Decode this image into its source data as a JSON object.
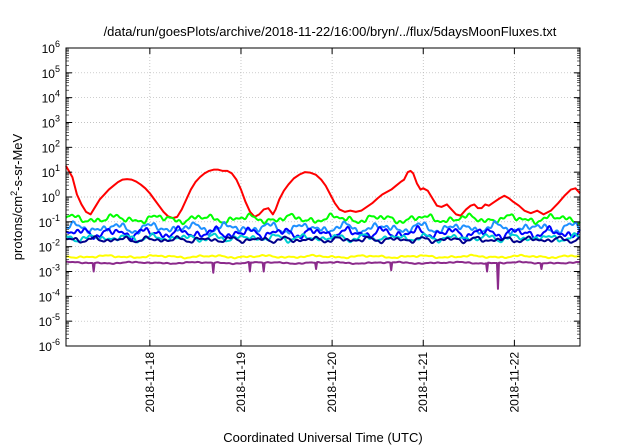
{
  "chart_data": {
    "type": "line",
    "title": "/data/run/goesPlots/archive/2018-11-22/16:00/bryn/../flux/5daysMoonFluxes.txt",
    "xlabel": "Coordinated Universal Time (UTC)",
    "ylabel": "protons/cm²-s-sr-MeV",
    "ylabel_parts": [
      "protons/cm",
      "2",
      "-s-sr-MeV"
    ],
    "y_scale": "log",
    "ylim_exp": [
      -6,
      6
    ],
    "y_ticks": [
      {
        "exp": -6,
        "label": "10",
        "sup": "-6"
      },
      {
        "exp": -5,
        "label": "10",
        "sup": "-5"
      },
      {
        "exp": -4,
        "label": "10",
        "sup": "-4"
      },
      {
        "exp": -3,
        "label": "10",
        "sup": "-3"
      },
      {
        "exp": -2,
        "label": "10",
        "sup": "-2"
      },
      {
        "exp": -1,
        "label": "10",
        "sup": "-1"
      },
      {
        "exp": 0,
        "label": "10",
        "sup": "0"
      },
      {
        "exp": 1,
        "label": "10",
        "sup": "1"
      },
      {
        "exp": 2,
        "label": "10",
        "sup": "2"
      },
      {
        "exp": 3,
        "label": "10",
        "sup": "3"
      },
      {
        "exp": 4,
        "label": "10",
        "sup": "4"
      },
      {
        "exp": 5,
        "label": "10",
        "sup": "5"
      },
      {
        "exp": 6,
        "label": "10",
        "sup": "6"
      }
    ],
    "xlim_days": [
      -0.92,
      4.72
    ],
    "x_ticks": [
      {
        "day": 0,
        "label": "2018-11-18"
      },
      {
        "day": 1,
        "label": "2018-11-19"
      },
      {
        "day": 2,
        "label": "2018-11-20"
      },
      {
        "day": 3,
        "label": "2018-11-21"
      },
      {
        "day": 4,
        "label": "2018-11-22"
      }
    ],
    "grid": true,
    "legend": "none",
    "series": [
      {
        "color": "#ff0000",
        "points": [
          [
            -0.92,
            1.25
          ],
          [
            -0.85,
            0.8
          ],
          [
            -0.8,
            0.1
          ],
          [
            -0.75,
            -0.3
          ],
          [
            -0.7,
            -0.6
          ],
          [
            -0.65,
            -0.7
          ],
          [
            -0.6,
            -0.4
          ],
          [
            -0.55,
            -0.1
          ],
          [
            -0.5,
            0.1
          ],
          [
            -0.45,
            0.3
          ],
          [
            -0.4,
            0.45
          ],
          [
            -0.35,
            0.6
          ],
          [
            -0.3,
            0.7
          ],
          [
            -0.25,
            0.72
          ],
          [
            -0.2,
            0.7
          ],
          [
            -0.15,
            0.62
          ],
          [
            -0.1,
            0.5
          ],
          [
            -0.05,
            0.35
          ],
          [
            0.0,
            0.15
          ],
          [
            0.05,
            -0.1
          ],
          [
            0.1,
            -0.35
          ],
          [
            0.15,
            -0.6
          ],
          [
            0.2,
            -0.78
          ],
          [
            0.25,
            -0.85
          ],
          [
            0.3,
            -0.8
          ],
          [
            0.35,
            -0.5
          ],
          [
            0.4,
            -0.1
          ],
          [
            0.45,
            0.3
          ],
          [
            0.5,
            0.6
          ],
          [
            0.55,
            0.8
          ],
          [
            0.6,
            0.95
          ],
          [
            0.65,
            1.05
          ],
          [
            0.7,
            1.1
          ],
          [
            0.75,
            1.1
          ],
          [
            0.8,
            1.05
          ],
          [
            0.85,
            1.05
          ],
          [
            0.9,
            0.95
          ],
          [
            0.95,
            0.7
          ],
          [
            1.0,
            0.3
          ],
          [
            1.05,
            -0.2
          ],
          [
            1.1,
            -0.6
          ],
          [
            1.15,
            -0.8
          ],
          [
            1.2,
            -0.7
          ],
          [
            1.25,
            -0.5
          ],
          [
            1.3,
            -0.45
          ],
          [
            1.35,
            -0.7
          ],
          [
            1.38,
            -0.5
          ],
          [
            1.42,
            -0.1
          ],
          [
            1.47,
            0.25
          ],
          [
            1.52,
            0.5
          ],
          [
            1.58,
            0.75
          ],
          [
            1.64,
            0.9
          ],
          [
            1.7,
            1.0
          ],
          [
            1.76,
            0.98
          ],
          [
            1.82,
            0.9
          ],
          [
            1.88,
            0.7
          ],
          [
            1.93,
            0.45
          ],
          [
            1.98,
            0.1
          ],
          [
            2.03,
            -0.25
          ],
          [
            2.08,
            -0.5
          ],
          [
            2.14,
            -0.6
          ],
          [
            2.2,
            -0.55
          ],
          [
            2.26,
            -0.6
          ],
          [
            2.32,
            -0.55
          ],
          [
            2.38,
            -0.4
          ],
          [
            2.44,
            -0.25
          ],
          [
            2.5,
            -0.05
          ],
          [
            2.55,
            0.1
          ],
          [
            2.6,
            0.2
          ],
          [
            2.65,
            0.3
          ],
          [
            2.7,
            0.45
          ],
          [
            2.75,
            0.6
          ],
          [
            2.79,
            0.7
          ],
          [
            2.83,
            1.0
          ],
          [
            2.86,
            1.05
          ],
          [
            2.89,
            0.95
          ],
          [
            2.93,
            0.55
          ],
          [
            2.97,
            0.3
          ],
          [
            3.0,
            0.35
          ],
          [
            3.05,
            0.25
          ],
          [
            3.1,
            -0.05
          ],
          [
            3.15,
            -0.35
          ],
          [
            3.2,
            -0.4
          ],
          [
            3.26,
            -0.3
          ],
          [
            3.31,
            -0.5
          ],
          [
            3.36,
            -0.7
          ],
          [
            3.41,
            -0.75
          ],
          [
            3.47,
            -0.5
          ],
          [
            3.52,
            -0.35
          ],
          [
            3.56,
            -0.3
          ],
          [
            3.6,
            -0.45
          ],
          [
            3.64,
            -0.45
          ],
          [
            3.68,
            -0.3
          ],
          [
            3.72,
            -0.35
          ],
          [
            3.78,
            -0.2
          ],
          [
            3.84,
            -0.05
          ],
          [
            3.89,
            0.05
          ],
          [
            3.94,
            -0.05
          ],
          [
            3.99,
            -0.2
          ],
          [
            4.05,
            -0.35
          ],
          [
            4.11,
            -0.55
          ],
          [
            4.18,
            -0.65
          ],
          [
            4.25,
            -0.55
          ],
          [
            4.32,
            -0.7
          ],
          [
            4.4,
            -0.55
          ],
          [
            4.48,
            -0.25
          ],
          [
            4.55,
            0.05
          ],
          [
            4.62,
            0.3
          ],
          [
            4.67,
            0.35
          ],
          [
            4.72,
            0.15
          ]
        ]
      },
      {
        "color": "#00ff00",
        "base": -0.88,
        "amp": 0.18,
        "f1": 13.0,
        "f2": 29.0,
        "p": 0.3
      },
      {
        "color": "#1e90ff",
        "base": -1.25,
        "amp": 0.22,
        "f1": 15.0,
        "f2": 23.0,
        "p": 1.1
      },
      {
        "color": "#0000ff",
        "base": -1.45,
        "amp": 0.22,
        "f1": 17.0,
        "f2": 31.0,
        "p": 2.2
      },
      {
        "color": "#00ced1",
        "base": -1.65,
        "amp": 0.15,
        "f1": 19.0,
        "f2": 27.0,
        "p": 0.7
      },
      {
        "color": "#00008b",
        "base": -1.72,
        "amp": 0.12,
        "f1": 21.0,
        "f2": 33.0,
        "p": 1.7
      },
      {
        "color": "#ffff00",
        "base": -2.4,
        "amp": 0.06,
        "f1": 11.0,
        "f2": 25.0,
        "p": 0.5
      },
      {
        "color": "#8b2a8b",
        "base": -2.65,
        "amp": 0.04,
        "f1": 9.0,
        "f2": 19.0,
        "p": 2.9,
        "dips": [
          [
            -0.62,
            -3.0
          ],
          [
            0.7,
            -3.05
          ],
          [
            1.1,
            -3.0
          ],
          [
            1.25,
            -3.0
          ],
          [
            1.82,
            -2.9
          ],
          [
            2.65,
            -2.95
          ],
          [
            3.7,
            -3.0
          ],
          [
            3.82,
            -3.7
          ],
          [
            4.3,
            -2.9
          ]
        ]
      }
    ]
  }
}
